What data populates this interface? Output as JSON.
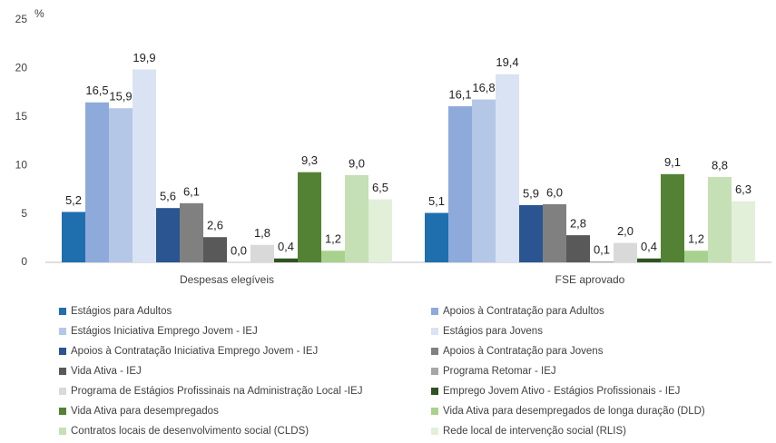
{
  "chart_data": {
    "type": "bar",
    "y_label": "%",
    "categories": [
      "Despesas elegíveis",
      "FSE aprovado"
    ],
    "ylim": [
      0,
      25
    ],
    "yticks": [
      0,
      5,
      10,
      15,
      20,
      25
    ],
    "grid": false,
    "legend": "bottom",
    "series": [
      {
        "name": "Estágios para Adultos",
        "color": "#1f6fae",
        "values": [
          5.2,
          5.1
        ],
        "value_labels": [
          "5,2",
          "5,1"
        ]
      },
      {
        "name": "Apoios à Contratação para Adultos",
        "color": "#8eaadb",
        "values": [
          16.5,
          16.1
        ],
        "value_labels": [
          "16,5",
          "16,1"
        ]
      },
      {
        "name": "Estágios Iniciativa Emprego Jovem - IEJ",
        "color": "#b4c7e7",
        "values": [
          15.9,
          16.8
        ],
        "value_labels": [
          "15,9",
          "16,8"
        ]
      },
      {
        "name": "Estágios para Jovens",
        "color": "#dae3f3",
        "values": [
          19.9,
          19.4
        ],
        "value_labels": [
          "19,9",
          "19,4"
        ]
      },
      {
        "name": "Apoios à Contratação Iniciativa Emprego Jovem - IEJ",
        "color": "#2a5590",
        "values": [
          5.6,
          5.9
        ],
        "value_labels": [
          "5,6",
          "5,9"
        ]
      },
      {
        "name": "Apoios à Contratação para Jovens",
        "color": "#808080",
        "values": [
          6.1,
          6.0
        ],
        "value_labels": [
          "6,1",
          "6,0"
        ]
      },
      {
        "name": "Vida Ativa - IEJ",
        "color": "#595959",
        "values": [
          2.6,
          2.8
        ],
        "value_labels": [
          "2,6",
          "2,8"
        ]
      },
      {
        "name": "Programa Retomar - IEJ",
        "color": "#a6a6a6",
        "values": [
          0.0,
          0.1
        ],
        "value_labels": [
          "0,0",
          "0,1"
        ]
      },
      {
        "name": "Programa de Estágios Profissinais na Administração Local -IEJ",
        "color": "#d9d9d9",
        "values": [
          1.8,
          2.0
        ],
        "value_labels": [
          "1,8",
          "2,0"
        ]
      },
      {
        "name": "Emprego Jovem Ativo - Estágios Profissionais - IEJ",
        "color": "#2e5222",
        "values": [
          0.4,
          0.4
        ],
        "value_labels": [
          "0,4",
          "0,4"
        ]
      },
      {
        "name": "Vida Ativa para desempregados",
        "color": "#548235",
        "values": [
          9.3,
          9.1
        ],
        "value_labels": [
          "9,3",
          "9,1"
        ]
      },
      {
        "name": "Vida Ativa para desempregados de longa duração (DLD)",
        "color": "#a9d18e",
        "values": [
          1.2,
          1.2
        ],
        "value_labels": [
          "1,2",
          "1,2"
        ]
      },
      {
        "name": "Contratos locais de desenvolvimento social (CLDS)",
        "color": "#c5e0b4",
        "values": [
          9.0,
          8.8
        ],
        "value_labels": [
          "9,0",
          "8,8"
        ]
      },
      {
        "name": "Rede local de intervenção social (RLIS)",
        "color": "#e2f0d9",
        "values": [
          6.5,
          6.3
        ],
        "value_labels": [
          "6,5",
          "6,3"
        ]
      }
    ]
  }
}
